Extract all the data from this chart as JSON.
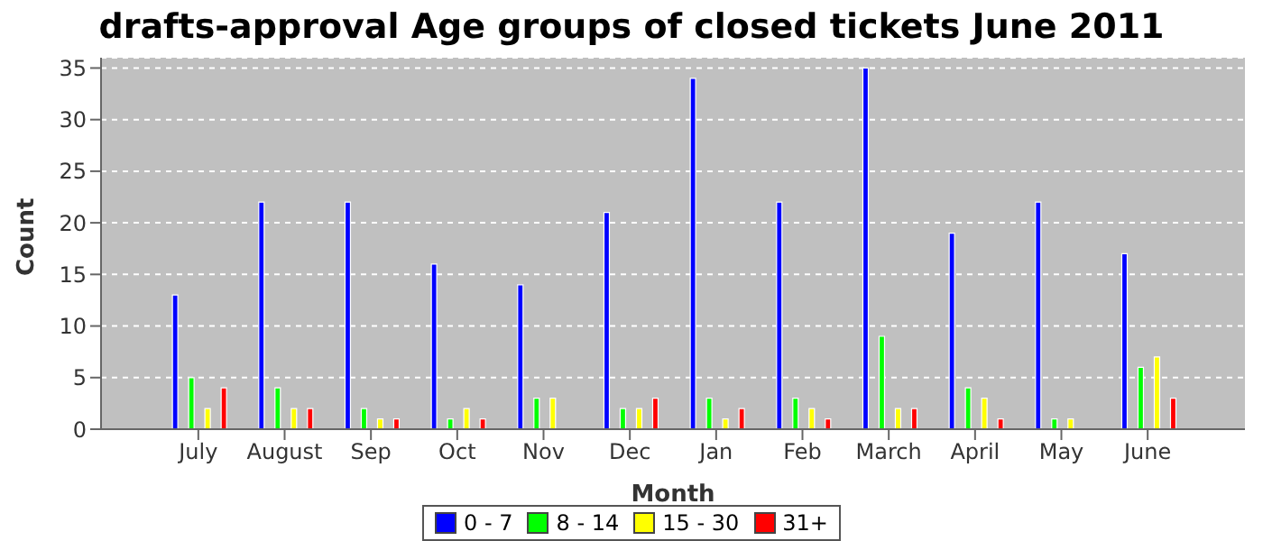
{
  "chart_data": {
    "type": "bar",
    "title": "drafts-approval Age groups of closed tickets June 2011",
    "xlabel": "Month",
    "ylabel": "Count",
    "categories": [
      "July",
      "August",
      "Sep",
      "Oct",
      "Nov",
      "Dec",
      "Jan",
      "Feb",
      "March",
      "April",
      "May",
      "June"
    ],
    "series": [
      {
        "name": "0 - 7",
        "color": "#0000ff",
        "values": [
          13,
          22,
          22,
          16,
          14,
          21,
          34,
          22,
          35,
          19,
          22,
          17
        ]
      },
      {
        "name": "8 - 14",
        "color": "#00ff00",
        "values": [
          5,
          4,
          2,
          1,
          3,
          2,
          3,
          3,
          9,
          4,
          1,
          6
        ]
      },
      {
        "name": "15 - 30",
        "color": "#ffff00",
        "values": [
          2,
          2,
          1,
          2,
          3,
          2,
          1,
          2,
          2,
          3,
          1,
          7
        ]
      },
      {
        "name": "31+",
        "color": "#ff0000",
        "values": [
          4,
          2,
          1,
          1,
          0,
          3,
          2,
          1,
          2,
          1,
          0,
          3
        ]
      }
    ],
    "ylim": [
      0,
      36
    ],
    "yticks": [
      0,
      5,
      10,
      15,
      20,
      25,
      30,
      35
    ],
    "grid": "y",
    "legend": "bottom"
  }
}
